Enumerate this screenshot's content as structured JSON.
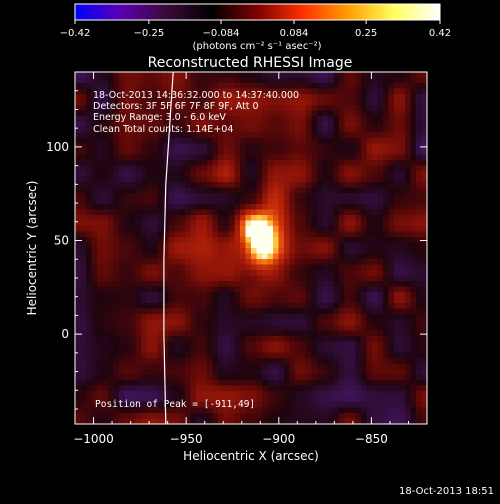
{
  "chart_data": {
    "type": "heatmap",
    "title": "Reconstructed RHESSI Image",
    "xlabel": "Heliocentric X (arcsec)",
    "ylabel": "Heliocentric Y (arcsec)",
    "xlim": [
      -1010,
      -820
    ],
    "ylim": [
      -48,
      140
    ],
    "xticks": [
      -1000,
      -950,
      -900,
      -850
    ],
    "xtick_labels": [
      "−1000",
      "−950",
      "−900",
      "−850"
    ],
    "yticks": [
      0,
      50,
      100
    ],
    "ytick_labels": [
      "0",
      "50",
      "100"
    ],
    "colorbar": {
      "range": [
        -0.42,
        0.42
      ],
      "ticks": [
        -0.42,
        -0.25,
        -0.084,
        0.084,
        0.25,
        0.42
      ],
      "tick_labels": [
        "−0.42",
        "−0.25",
        "−0.084",
        "0.084",
        "0.25",
        "0.42"
      ],
      "units_label": "(photons cm⁻² s⁻¹ asec⁻²)",
      "colors": [
        "#0000ff",
        "#5a00b0",
        "#3a0a3a",
        "#000000",
        "#800000",
        "#ff3000",
        "#ffa000",
        "#ffff60",
        "#ffffff"
      ]
    },
    "annotations": [
      "18-Oct-2013 14:36:32.000 to 14:37:40.000",
      "Detectors: 3F 5F 6F 7F 8F 9F, Att 0",
      "Energy Range: 3.0 - 6.0 keV",
      "Clean     Total counts: 1.14E+04"
    ],
    "peak": {
      "x": -911,
      "y": 49,
      "value": 0.42,
      "label": "Position of Peak = [-911,49]"
    },
    "limb_curve": [
      [
        -961,
        -48
      ],
      [
        -962,
        0
      ],
      [
        -962,
        40
      ],
      [
        -961,
        80
      ],
      [
        -959,
        110
      ],
      [
        -957,
        140
      ]
    ]
  },
  "footer_timestamp": "18-Oct-2013 18:51"
}
